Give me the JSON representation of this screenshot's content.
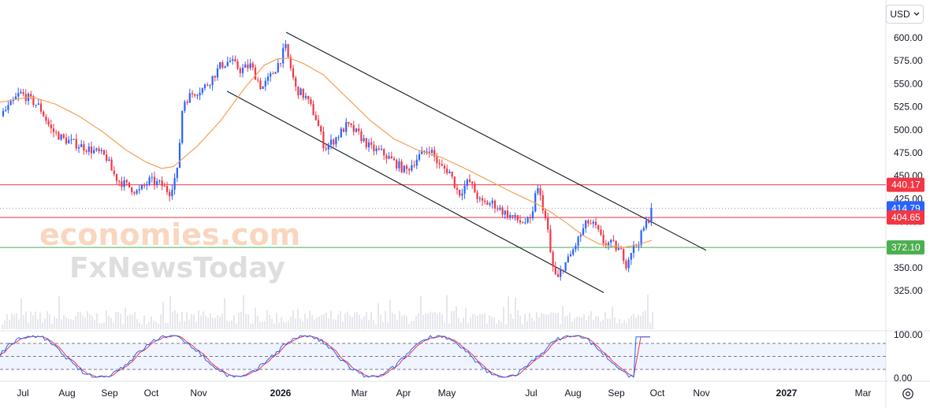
{
  "currency": {
    "label": "USD",
    "icon": "chevron-down-icon"
  },
  "watermark": {
    "line1": "economies.com",
    "line2": "FxNewsToday"
  },
  "chart_data": {
    "type": "candlestick",
    "price_axis": {
      "ticks": [
        "600.00",
        "575.00",
        "550.00",
        "525.00",
        "500.00",
        "475.00",
        "450.00",
        "425.00",
        "400.00",
        "375.00",
        "350.00",
        "325.00"
      ],
      "ylim": [
        310,
        615
      ]
    },
    "time_axis": {
      "ticks": [
        "Jul",
        "Aug",
        "Sep",
        "Oct",
        "Nov",
        "2026",
        "Mar",
        "Apr",
        "May",
        "Jul",
        "Aug",
        "Sep",
        "Oct",
        "Nov",
        "2027",
        "Mar"
      ]
    },
    "price_tags": [
      {
        "value": "440.17",
        "color": "#f23645",
        "type": "resistance"
      },
      {
        "value": "414.79",
        "color": "#2962ff",
        "type": "last-price"
      },
      {
        "value": "404.65",
        "color": "#f23645",
        "type": "resistance"
      },
      {
        "value": "372.10",
        "color": "#4caf50",
        "type": "support"
      }
    ],
    "horizontal_lines": [
      {
        "price": 440.17,
        "color": "#f23645"
      },
      {
        "price": 404.65,
        "color": "#f23645"
      },
      {
        "price": 372.1,
        "color": "#4caf50"
      },
      {
        "price": 414.79,
        "color": "#9598a1",
        "style": "dotted"
      }
    ],
    "moving_average": {
      "color": "#f5a056"
    },
    "up_color": "#2962ff",
    "down_color": "#f23645",
    "keypoints": [
      [
        0,
        515
      ],
      [
        12,
        525
      ],
      [
        25,
        540
      ],
      [
        35,
        535
      ],
      [
        50,
        525
      ],
      [
        65,
        500
      ],
      [
        80,
        490
      ],
      [
        95,
        485
      ],
      [
        110,
        480
      ],
      [
        125,
        475
      ],
      [
        135,
        470
      ],
      [
        142,
        455
      ],
      [
        150,
        445
      ],
      [
        160,
        440
      ],
      [
        175,
        432
      ],
      [
        190,
        445
      ],
      [
        205,
        440
      ],
      [
        215,
        432
      ],
      [
        225,
        455
      ],
      [
        232,
        530
      ],
      [
        245,
        540
      ],
      [
        258,
        545
      ],
      [
        268,
        555
      ],
      [
        280,
        570
      ],
      [
        292,
        575
      ],
      [
        305,
        565
      ],
      [
        318,
        570
      ],
      [
        332,
        545
      ],
      [
        345,
        560
      ],
      [
        355,
        575
      ],
      [
        362,
        590
      ],
      [
        368,
        570
      ],
      [
        375,
        545
      ],
      [
        388,
        535
      ],
      [
        400,
        515
      ],
      [
        412,
        480
      ],
      [
        425,
        490
      ],
      [
        440,
        505
      ],
      [
        455,
        495
      ],
      [
        470,
        480
      ],
      [
        485,
        475
      ],
      [
        500,
        465
      ],
      [
        515,
        455
      ],
      [
        530,
        470
      ],
      [
        545,
        480
      ],
      [
        558,
        460
      ],
      [
        570,
        455
      ],
      [
        582,
        430
      ],
      [
        595,
        445
      ],
      [
        610,
        420
      ],
      [
        625,
        420
      ],
      [
        640,
        410
      ],
      [
        660,
        400
      ],
      [
        675,
        400
      ],
      [
        680,
        440
      ],
      [
        688,
        420
      ],
      [
        695,
        390
      ],
      [
        700,
        355
      ],
      [
        707,
        335
      ],
      [
        713,
        350
      ],
      [
        722,
        360
      ],
      [
        732,
        378
      ],
      [
        745,
        400
      ],
      [
        755,
        395
      ],
      [
        765,
        378
      ],
      [
        778,
        375
      ],
      [
        790,
        365
      ],
      [
        795,
        353
      ],
      [
        800,
        368
      ],
      [
        810,
        378
      ],
      [
        818,
        395
      ],
      [
        824,
        405
      ],
      [
        827,
        414.79
      ]
    ],
    "ma_keypoints": [
      [
        0,
        530
      ],
      [
        40,
        536
      ],
      [
        70,
        528
      ],
      [
        100,
        515
      ],
      [
        130,
        498
      ],
      [
        160,
        478
      ],
      [
        185,
        465
      ],
      [
        205,
        458
      ],
      [
        220,
        460
      ],
      [
        250,
        482
      ],
      [
        280,
        510
      ],
      [
        310,
        545
      ],
      [
        335,
        570
      ],
      [
        352,
        577
      ],
      [
        368,
        578
      ],
      [
        385,
        572
      ],
      [
        410,
        560
      ],
      [
        440,
        535
      ],
      [
        470,
        510
      ],
      [
        500,
        490
      ],
      [
        530,
        478
      ],
      [
        560,
        470
      ],
      [
        590,
        458
      ],
      [
        620,
        445
      ],
      [
        650,
        432
      ],
      [
        680,
        420
      ],
      [
        700,
        410
      ],
      [
        720,
        398
      ],
      [
        740,
        385
      ],
      [
        760,
        376
      ],
      [
        790,
        372
      ],
      [
        810,
        375
      ],
      [
        827,
        380
      ]
    ],
    "channel_lines": [
      {
        "from": [
          363,
          606
        ],
        "to": [
          896,
          369
        ]
      },
      {
        "from": [
          288,
          542
        ],
        "to": [
          766,
          323
        ]
      }
    ],
    "stochastic": {
      "ticks": [
        "100.00",
        "0.00"
      ],
      "levels": [
        80,
        50,
        20
      ],
      "k_color": "#2962ff",
      "d_color": "#f23645"
    }
  }
}
